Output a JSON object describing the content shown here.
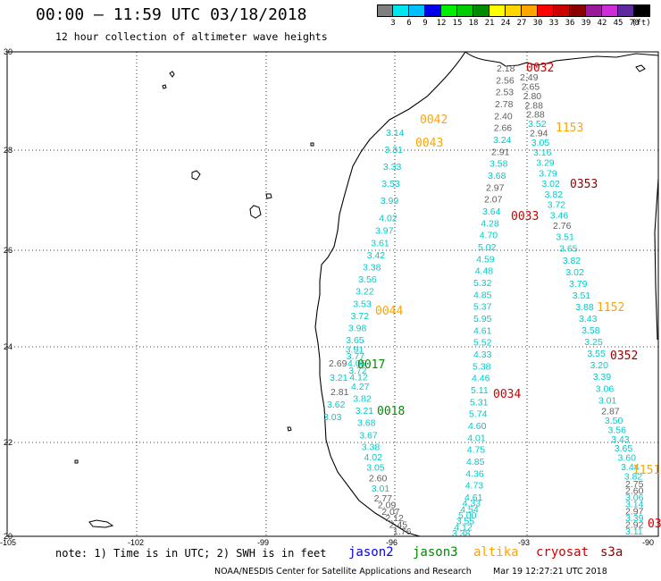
{
  "header": {
    "title": "00:00 – 11:59 UTC 03/18/2018",
    "subtitle": "12 hour collection of altimeter wave heights"
  },
  "colorbar": {
    "colors": [
      "#7f7f7f",
      "#00e5ee",
      "#00bfff",
      "#0000ee",
      "#00ee00",
      "#00cd00",
      "#008b00",
      "#ffff00",
      "#ffd700",
      "#ffa500",
      "#ff0000",
      "#cd0000",
      "#8b0000",
      "#9a1a9a",
      "#cd2cd6",
      "#5c2a9e",
      "#000000"
    ],
    "labels": [
      "3",
      "6",
      "9",
      "12",
      "15",
      "18",
      "21",
      "24",
      "27",
      "30",
      "33",
      "36",
      "39",
      "42",
      "45",
      "70"
    ],
    "unit": "(ft)"
  },
  "axes": {
    "lon_labels": [
      "-105",
      "-102",
      "-99",
      "-96",
      "-93",
      "-90"
    ],
    "lat_labels": [
      "30",
      "28",
      "26",
      "24",
      "22",
      "20"
    ]
  },
  "satellites": {
    "jason2": {
      "name": "jason2",
      "color": "#0000ff"
    },
    "jason3": {
      "name": "jason3",
      "color": "#008b00"
    },
    "altika": {
      "name": "altika",
      "color": "#ffa500"
    },
    "cryosat": {
      "name": "cryosat",
      "color": "#cd0000"
    },
    "s3a": {
      "name": "s3a",
      "color": "#8b0000"
    }
  },
  "track_colors": {
    "cyan": "#00cccc",
    "gray": "#606060"
  },
  "passes": [
    {
      "label": "0032",
      "sat": "cryosat"
    },
    {
      "label": "0042",
      "sat": "altika"
    },
    {
      "label": "0043",
      "sat": "altika"
    },
    {
      "label": "1153",
      "sat": "altika"
    },
    {
      "label": "0353",
      "sat": "s3a"
    },
    {
      "label": "0033",
      "sat": "cryosat"
    },
    {
      "label": "0044",
      "sat": "altika"
    },
    {
      "label": "1152",
      "sat": "altika"
    },
    {
      "label": "0017",
      "sat": "jason3"
    },
    {
      "label": "0352",
      "sat": "s3a"
    },
    {
      "label": "0034",
      "sat": "cryosat"
    },
    {
      "label": "0018",
      "sat": "jason3"
    },
    {
      "label": "1151",
      "sat": "altika"
    },
    {
      "label": "03",
      "sat": "cryosat"
    }
  ],
  "tracks": {
    "coastal": [
      {
        "v": "3.14",
        "c": "cyan"
      },
      {
        "v": "3.31",
        "c": "cyan"
      },
      {
        "v": "3.33",
        "c": "cyan"
      },
      {
        "v": "3.53",
        "c": "cyan"
      },
      {
        "v": "3.99",
        "c": "cyan"
      },
      {
        "v": "4.02",
        "c": "cyan"
      },
      {
        "v": "3.97",
        "c": "cyan"
      },
      {
        "v": "3.61",
        "c": "cyan"
      },
      {
        "v": "3.42",
        "c": "cyan"
      },
      {
        "v": "3.38",
        "c": "cyan"
      },
      {
        "v": "3.56",
        "c": "cyan"
      },
      {
        "v": "3.22",
        "c": "cyan"
      },
      {
        "v": "3.53",
        "c": "cyan"
      },
      {
        "v": "3.72",
        "c": "cyan"
      },
      {
        "v": "3.98",
        "c": "cyan"
      },
      {
        "v": "3.65",
        "c": "cyan"
      },
      {
        "v": "3.91",
        "c": "cyan"
      },
      {
        "v": "3.77",
        "c": "cyan"
      },
      {
        "v": "4.05",
        "c": "cyan"
      },
      {
        "v": "3.72",
        "c": "cyan"
      },
      {
        "v": "4.12",
        "c": "cyan"
      },
      {
        "v": "4.27",
        "c": "cyan"
      },
      {
        "v": "3.82",
        "c": "cyan"
      },
      {
        "v": "3.21",
        "c": "cyan"
      },
      {
        "v": "3.68",
        "c": "cyan"
      },
      {
        "v": "3.67",
        "c": "cyan"
      },
      {
        "v": "3.38",
        "c": "cyan"
      },
      {
        "v": "4.02",
        "c": "cyan"
      },
      {
        "v": "3.05",
        "c": "cyan"
      },
      {
        "v": "2.60",
        "c": "gray"
      },
      {
        "v": "3.01",
        "c": "cyan"
      },
      {
        "v": "2.77",
        "c": "gray"
      },
      {
        "v": "2.09",
        "c": "gray"
      },
      {
        "v": "2.07",
        "c": "gray"
      },
      {
        "v": "2.12",
        "c": "gray"
      },
      {
        "v": "2.45",
        "c": "gray"
      },
      {
        "v": "1.76",
        "c": "gray"
      }
    ],
    "coastal_extra": [
      {
        "v": "2.69",
        "c": "gray"
      },
      {
        "v": "3.21",
        "c": "cyan"
      },
      {
        "v": "2.81",
        "c": "gray"
      },
      {
        "v": "3.62",
        "c": "cyan"
      },
      {
        "v": "3.03",
        "c": "cyan"
      }
    ],
    "middle": [
      {
        "v": "2.18",
        "c": "gray"
      },
      {
        "v": "2.56",
        "c": "gray"
      },
      {
        "v": "2.53",
        "c": "gray"
      },
      {
        "v": "2.78",
        "c": "gray"
      },
      {
        "v": "2.40",
        "c": "gray"
      },
      {
        "v": "2.66",
        "c": "gray"
      },
      {
        "v": "3.24",
        "c": "cyan"
      },
      {
        "v": "2.91",
        "c": "gray"
      },
      {
        "v": "3.58",
        "c": "cyan"
      },
      {
        "v": "3.68",
        "c": "cyan"
      },
      {
        "v": "2.97",
        "c": "gray"
      },
      {
        "v": "2.07",
        "c": "gray"
      },
      {
        "v": "3.64",
        "c": "cyan"
      },
      {
        "v": "4.28",
        "c": "cyan"
      },
      {
        "v": "4.70",
        "c": "cyan"
      },
      {
        "v": "5.02",
        "c": "cyan"
      },
      {
        "v": "4.59",
        "c": "cyan"
      },
      {
        "v": "4.48",
        "c": "cyan"
      },
      {
        "v": "5.32",
        "c": "cyan"
      },
      {
        "v": "4.85",
        "c": "cyan"
      },
      {
        "v": "5.37",
        "c": "cyan"
      },
      {
        "v": "5.95",
        "c": "cyan"
      },
      {
        "v": "4.61",
        "c": "cyan"
      },
      {
        "v": "5.52",
        "c": "cyan"
      },
      {
        "v": "4.33",
        "c": "cyan"
      },
      {
        "v": "5.38",
        "c": "cyan"
      },
      {
        "v": "4.46",
        "c": "cyan"
      },
      {
        "v": "5.11",
        "c": "cyan"
      },
      {
        "v": "5.31",
        "c": "cyan"
      },
      {
        "v": "5.74",
        "c": "cyan"
      },
      {
        "v": "4.60",
        "c": "cyan"
      },
      {
        "v": "4.01",
        "c": "cyan"
      },
      {
        "v": "4.75",
        "c": "cyan"
      },
      {
        "v": "4.85",
        "c": "cyan"
      },
      {
        "v": "4.36",
        "c": "cyan"
      },
      {
        "v": "4.73",
        "c": "cyan"
      },
      {
        "v": "4.61",
        "c": "cyan"
      },
      {
        "v": "4.33",
        "c": "cyan"
      },
      {
        "v": "4.54",
        "c": "cyan"
      },
      {
        "v": "5.00",
        "c": "cyan"
      },
      {
        "v": "3.55",
        "c": "cyan"
      },
      {
        "v": "4.12",
        "c": "cyan"
      },
      {
        "v": "3.38",
        "c": "cyan"
      }
    ],
    "east": [
      {
        "v": "2.49",
        "c": "gray"
      },
      {
        "v": "2.65",
        "c": "gray"
      },
      {
        "v": "2.80",
        "c": "gray"
      },
      {
        "v": "2.88",
        "c": "gray"
      },
      {
        "v": "2.88",
        "c": "gray"
      },
      {
        "v": "3.52",
        "c": "cyan"
      },
      {
        "v": "2.94",
        "c": "gray"
      },
      {
        "v": "3.05",
        "c": "cyan"
      },
      {
        "v": "3.16",
        "c": "cyan"
      },
      {
        "v": "3.29",
        "c": "cyan"
      },
      {
        "v": "3.79",
        "c": "cyan"
      },
      {
        "v": "3.02",
        "c": "cyan"
      },
      {
        "v": "3.82",
        "c": "cyan"
      },
      {
        "v": "3.72",
        "c": "cyan"
      },
      {
        "v": "3.46",
        "c": "cyan"
      },
      {
        "v": "2.76",
        "c": "gray"
      },
      {
        "v": "3.51",
        "c": "cyan"
      },
      {
        "v": "3.65",
        "c": "cyan"
      },
      {
        "v": "3.82",
        "c": "cyan"
      },
      {
        "v": "3.02",
        "c": "cyan"
      },
      {
        "v": "3.79",
        "c": "cyan"
      },
      {
        "v": "3.51",
        "c": "cyan"
      },
      {
        "v": "3.88",
        "c": "cyan"
      },
      {
        "v": "3.43",
        "c": "cyan"
      },
      {
        "v": "3.58",
        "c": "cyan"
      },
      {
        "v": "3.25",
        "c": "cyan"
      },
      {
        "v": "3.55",
        "c": "cyan"
      },
      {
        "v": "3.20",
        "c": "cyan"
      },
      {
        "v": "3.39",
        "c": "cyan"
      },
      {
        "v": "3.06",
        "c": "cyan"
      },
      {
        "v": "3.01",
        "c": "cyan"
      },
      {
        "v": "2.87",
        "c": "gray"
      },
      {
        "v": "3.50",
        "c": "cyan"
      },
      {
        "v": "3.56",
        "c": "cyan"
      },
      {
        "v": "3.43",
        "c": "cyan"
      },
      {
        "v": "3.65",
        "c": "cyan"
      },
      {
        "v": "3.60",
        "c": "cyan"
      },
      {
        "v": "3.44",
        "c": "cyan"
      },
      {
        "v": "3.82",
        "c": "cyan"
      },
      {
        "v": "2.75",
        "c": "gray"
      },
      {
        "v": "2.60",
        "c": "gray"
      },
      {
        "v": "3.06",
        "c": "cyan"
      },
      {
        "v": "3.14",
        "c": "cyan"
      },
      {
        "v": "2.97",
        "c": "gray"
      },
      {
        "v": "3.39",
        "c": "cyan"
      },
      {
        "v": "2.92",
        "c": "gray"
      },
      {
        "v": "3.11",
        "c": "cyan"
      }
    ]
  },
  "footer": {
    "note": "note: 1) Time is in UTC; 2) SWH is in feet",
    "credit": "NOAA/NESDIS Center for Satellite Applications and Research",
    "timestamp": "Mar 19 12:27:21 UTC 2018"
  }
}
